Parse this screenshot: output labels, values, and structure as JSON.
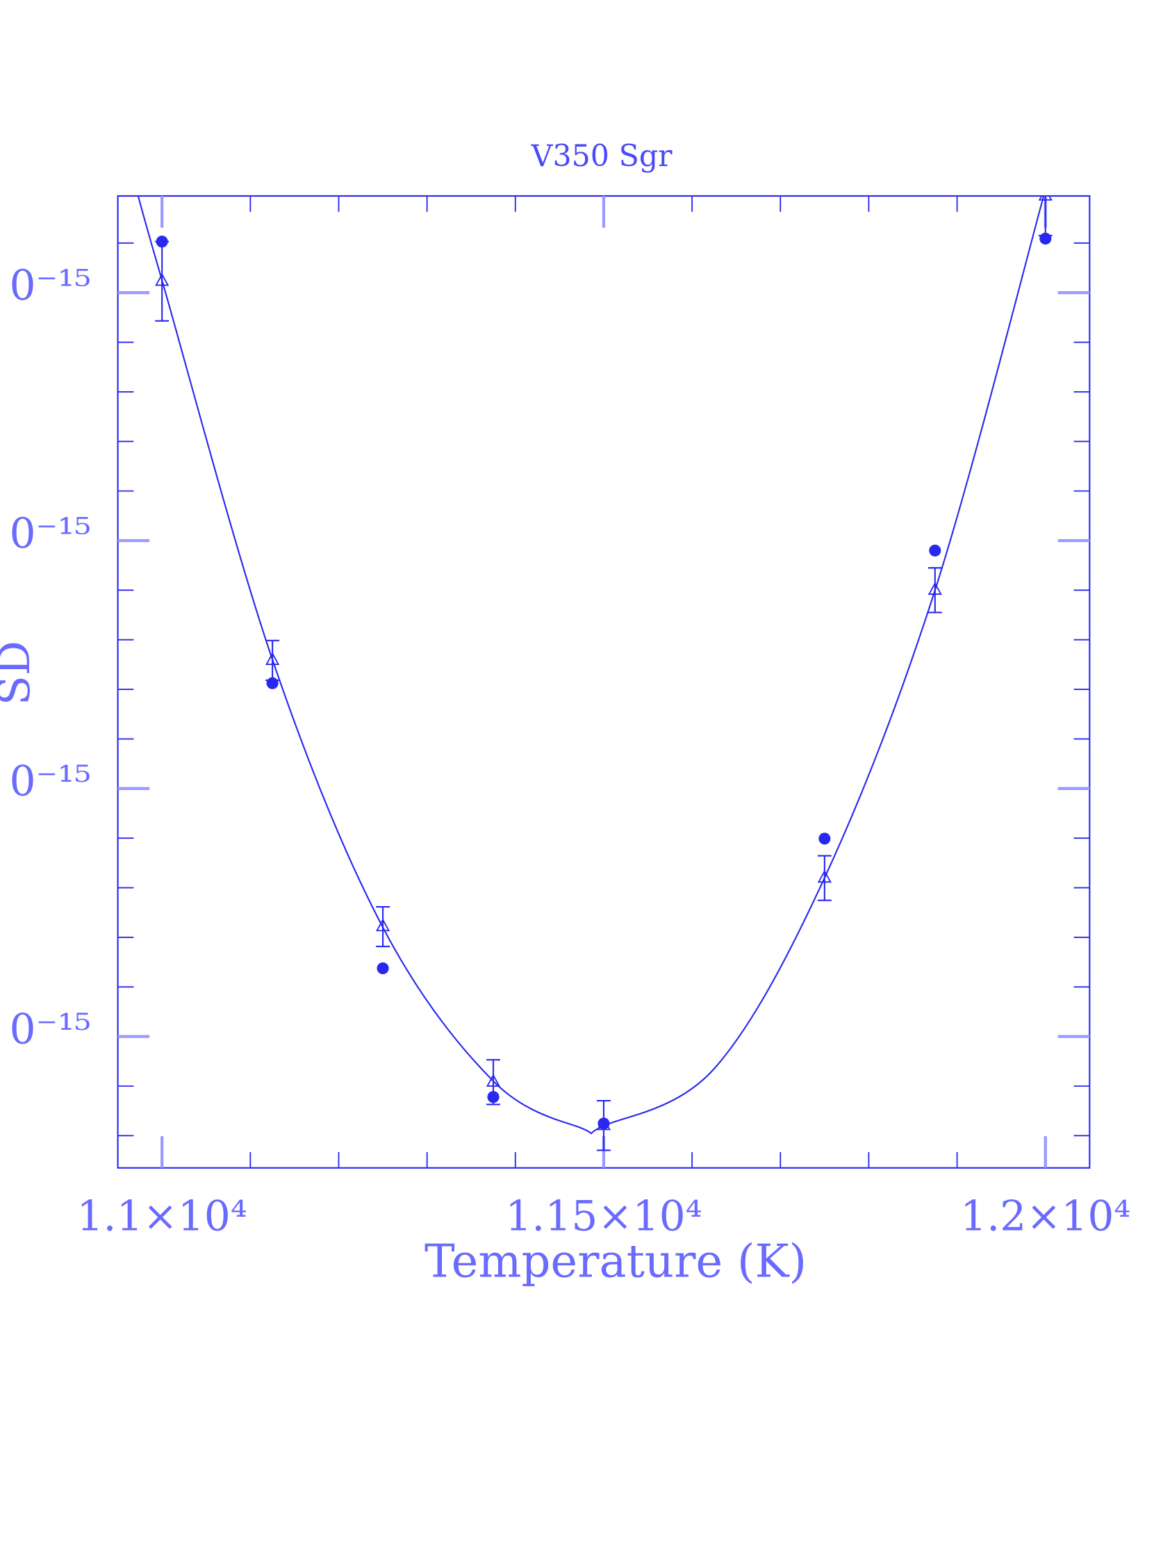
{
  "chart_data": {
    "type": "scatter",
    "title": "V350 Sgr",
    "x_label": "Temperature (K)",
    "y_label": "SD",
    "xlim": [
      10950,
      12050
    ],
    "ylim": [
      4.7e-16,
      4.39e-15
    ],
    "xticks": [
      {
        "value": 11000,
        "label": "1.1×10⁴"
      },
      {
        "value": 11500,
        "label": "1.15×10⁴"
      },
      {
        "value": 12000,
        "label": "1.2×10⁴"
      }
    ],
    "xminor_ticks": [
      11100,
      11200,
      11300,
      11400,
      11600,
      11700,
      11800,
      11900
    ],
    "yticks": [
      {
        "value": 1e-15,
        "label": "0⁻¹⁵"
      },
      {
        "value": 2e-15,
        "label": "0⁻¹⁵"
      },
      {
        "value": 3e-15,
        "label": "0⁻¹⁵"
      },
      {
        "value": 4e-15,
        "label": "0⁻¹⁵"
      }
    ],
    "yminor_ticks": [
      6e-16,
      8e-16,
      1.2e-15,
      1.4e-15,
      1.6e-15,
      1.8e-15,
      2.2e-15,
      2.4e-15,
      2.6e-15,
      2.8e-15,
      3.2e-15,
      3.4e-15,
      3.6e-15,
      3.8e-15,
      4.2e-15
    ],
    "color": "#2828f0",
    "series": [
      {
        "marker": "dot",
        "x": [
          11000,
          11125,
          11250,
          11375,
          11500,
          11750,
          11875,
          12000
        ],
        "values": [
          4.206e-15,
          2.425e-15,
          1.275e-15,
          7.56e-16,
          6.49e-16,
          1.798e-15,
          2.96e-15,
          4.218e-15
        ]
      },
      {
        "marker": "triangle",
        "x": [
          11000,
          11125,
          11250,
          11375,
          11500,
          11750,
          11875,
          12000
        ],
        "values": [
          4.046e-15,
          2.517e-15,
          1.443e-15,
          8.16e-16,
          6.41e-16,
          1.639e-15,
          2.8e-15,
          4.39e-15
        ],
        "errors": [
          1.6e-16,
          8e-17,
          8e-17,
          9e-17,
          1e-16,
          9e-17,
          9e-17,
          1.6e-16
        ]
      },
      {
        "marker": "line",
        "x": [
          10973,
          11000,
          11125,
          11250,
          11375,
          11475,
          11500,
          11625,
          11750,
          11875,
          11998
        ],
        "values": [
          4.39e-15,
          4.05e-15,
          2.52e-15,
          1.44e-15,
          8.2e-16,
          6.3e-16,
          6.4e-16,
          8.7e-16,
          1.64e-15,
          2.8e-15,
          4.39e-15
        ]
      }
    ]
  }
}
